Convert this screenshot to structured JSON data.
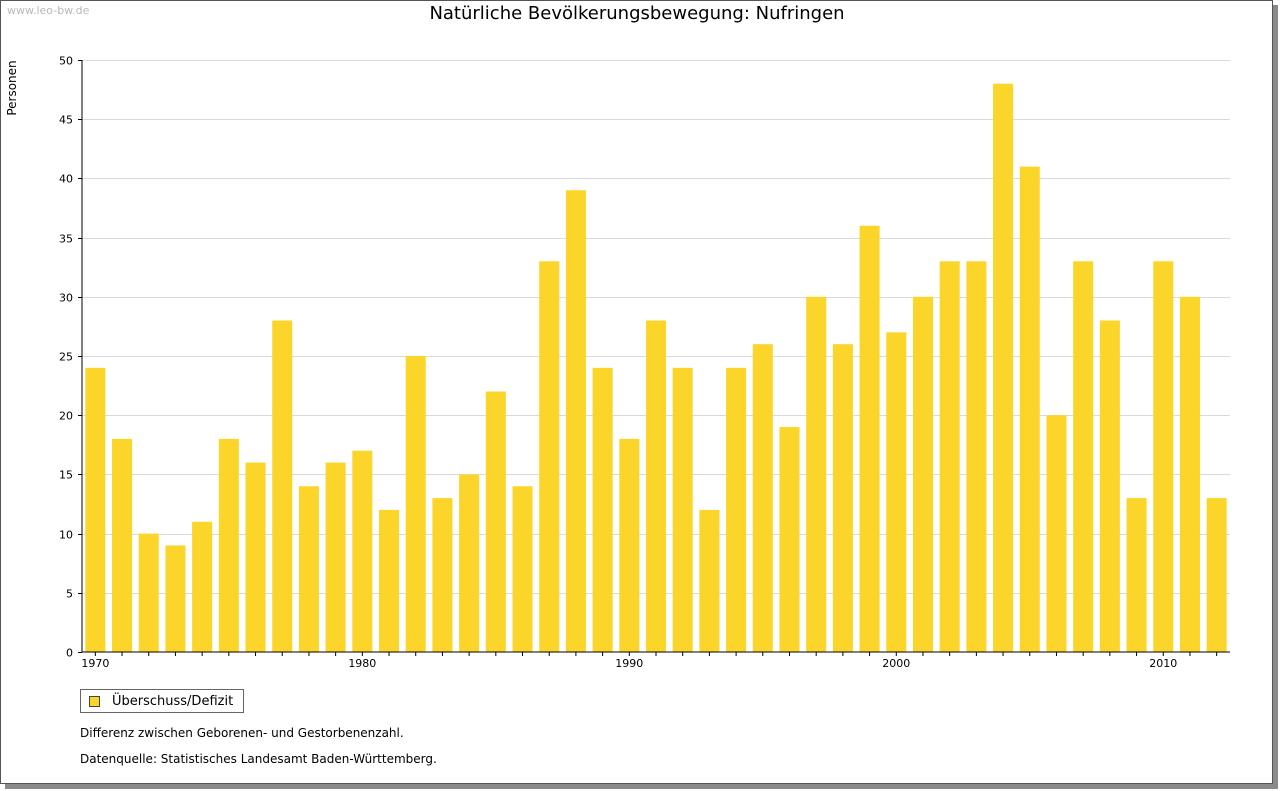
{
  "watermark": "www.leo-bw.de",
  "legend_label": "Überschuss/Defizit",
  "notes": {
    "definition": "Differenz zwischen Geborenen- und Gestorbenenzahl.",
    "source": "Datenquelle: Statistisches Landesamt Baden-Württemberg."
  },
  "colors": {
    "bar": "#FCD52A",
    "grid": "#d9d9d9",
    "axis": "#000000"
  },
  "chart_data": {
    "type": "bar",
    "title": "Natürliche Bevölkerungsbewegung: Nufringen",
    "xlabel": "",
    "ylabel": "Personen",
    "ylim": [
      0,
      50
    ],
    "yticks": [
      0,
      5,
      10,
      15,
      20,
      25,
      30,
      35,
      40,
      45,
      50
    ],
    "xtick_labels": [
      "1970",
      "1980",
      "1990",
      "2000",
      "2010"
    ],
    "series": [
      {
        "name": "Überschuss/Defizit",
        "categories": [
          1970,
          1971,
          1972,
          1973,
          1974,
          1975,
          1976,
          1977,
          1978,
          1979,
          1980,
          1981,
          1982,
          1983,
          1984,
          1985,
          1986,
          1987,
          1988,
          1989,
          1990,
          1991,
          1992,
          1993,
          1994,
          1995,
          1996,
          1997,
          1998,
          1999,
          2000,
          2001,
          2002,
          2003,
          2004,
          2005,
          2006,
          2007,
          2008,
          2009,
          2010,
          2011,
          2012
        ],
        "values": [
          24,
          18,
          10,
          9,
          11,
          18,
          16,
          28,
          14,
          16,
          17,
          12,
          25,
          13,
          15,
          22,
          14,
          33,
          39,
          24,
          18,
          28,
          24,
          12,
          24,
          26,
          19,
          30,
          26,
          36,
          27,
          30,
          33,
          33,
          48,
          41,
          20,
          33,
          28,
          13,
          33,
          30,
          13
        ]
      }
    ]
  }
}
